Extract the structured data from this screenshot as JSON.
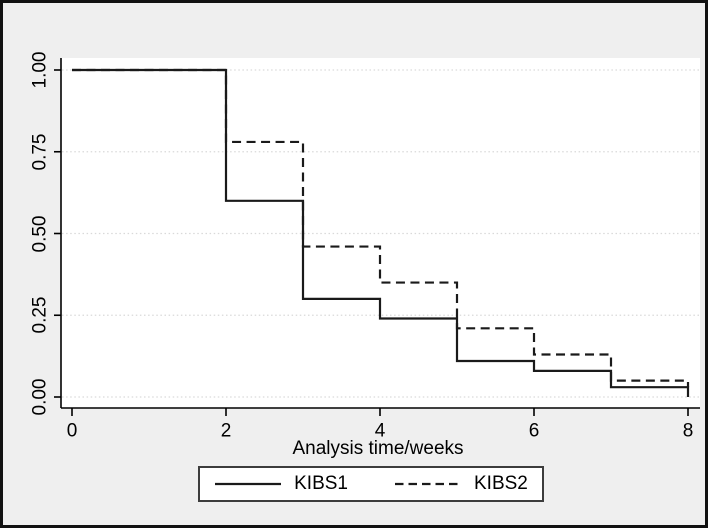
{
  "figure": {
    "background_color": "#efefef",
    "plot_background_color": "#ffffff",
    "frame_color": "#111111",
    "axis_color": "#000000",
    "line_color": "#1a1a1a",
    "gridline_color": "#d9d9d9",
    "legend_border_color": "#3c3c3c"
  },
  "chart_data": {
    "type": "line",
    "subtype": "kaplan-meier-step",
    "title": "",
    "xlabel": "Analysis time/weeks",
    "ylabel": "",
    "xlim": [
      0,
      8
    ],
    "ylim": [
      0,
      1
    ],
    "xticks": [
      {
        "value": 0,
        "label": "0"
      },
      {
        "value": 2,
        "label": "2"
      },
      {
        "value": 4,
        "label": "4"
      },
      {
        "value": 6,
        "label": "6"
      },
      {
        "value": 8,
        "label": "8"
      }
    ],
    "yticks": [
      {
        "value": 0.0,
        "label": "0.00"
      },
      {
        "value": 0.25,
        "label": "0.25"
      },
      {
        "value": 0.5,
        "label": "0.50"
      },
      {
        "value": 0.75,
        "label": "0.75"
      },
      {
        "value": 1.0,
        "label": "1.00"
      }
    ],
    "grid": "horizontal-dotted",
    "legend_position": "bottom-center",
    "series": [
      {
        "name": "KIBS1",
        "style": "solid",
        "times": [
          0,
          2,
          3,
          4,
          5,
          6,
          7,
          8
        ],
        "survival": [
          1.0,
          0.6,
          0.3,
          0.24,
          0.11,
          0.08,
          0.03,
          0.0
        ]
      },
      {
        "name": "KIBS2",
        "style": "dashed",
        "times": [
          0,
          2,
          3,
          4,
          5,
          6,
          7,
          8
        ],
        "survival": [
          1.0,
          0.78,
          0.46,
          0.35,
          0.21,
          0.13,
          0.05,
          0.03
        ]
      }
    ]
  }
}
